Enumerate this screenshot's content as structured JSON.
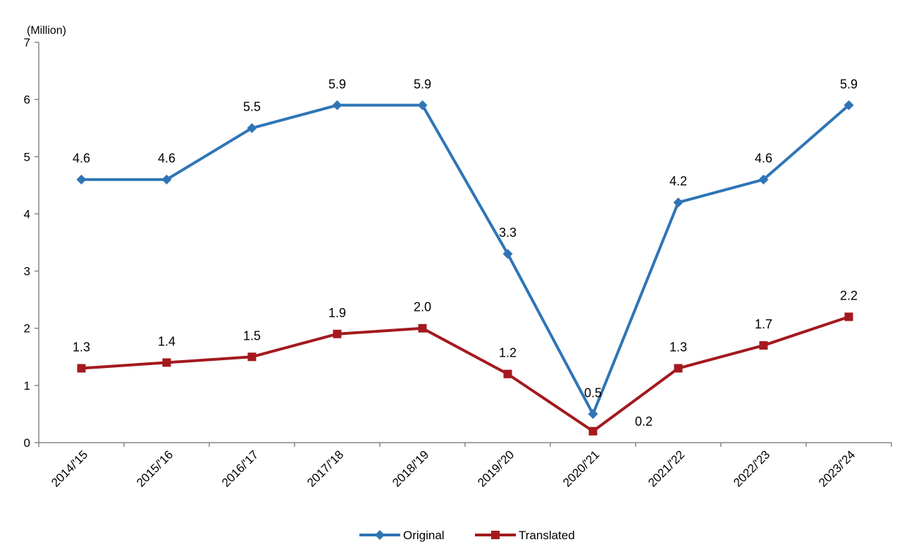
{
  "chart_data": {
    "type": "line",
    "title": "",
    "ylabel": "(Million)",
    "xlabel": "",
    "ylim": [
      0,
      7
    ],
    "yticks": [
      0,
      1,
      2,
      3,
      4,
      5,
      6,
      7
    ],
    "grid": false,
    "legend_position": "bottom-center",
    "categories": [
      "2014/'15",
      "2015/'16",
      "2016/'17",
      "2017/'18",
      "2018/'19",
      "2019/'20",
      "2020/'21",
      "2021/'22",
      "2022/'23",
      "2023/'24"
    ],
    "series": [
      {
        "name": "Original",
        "color": "#2E75B6",
        "marker": "diamond",
        "values": [
          4.6,
          4.6,
          5.5,
          5.9,
          5.9,
          3.3,
          0.5,
          4.2,
          4.6,
          5.9
        ],
        "labels": [
          "4.6",
          "4.6",
          "5.5",
          "5.9",
          "5.9",
          "3.3",
          "0.5",
          "4.2",
          "4.6",
          "5.9"
        ]
      },
      {
        "name": "Translated",
        "color": "#A3191E",
        "marker": "square",
        "values": [
          1.3,
          1.4,
          1.5,
          1.9,
          2.0,
          1.2,
          0.2,
          1.3,
          1.7,
          2.2
        ],
        "labels": [
          "1.3",
          "1.4",
          "1.5",
          "1.9",
          "2.0",
          "1.2",
          "0.2",
          "1.3",
          "1.7",
          "2.2"
        ]
      }
    ]
  }
}
